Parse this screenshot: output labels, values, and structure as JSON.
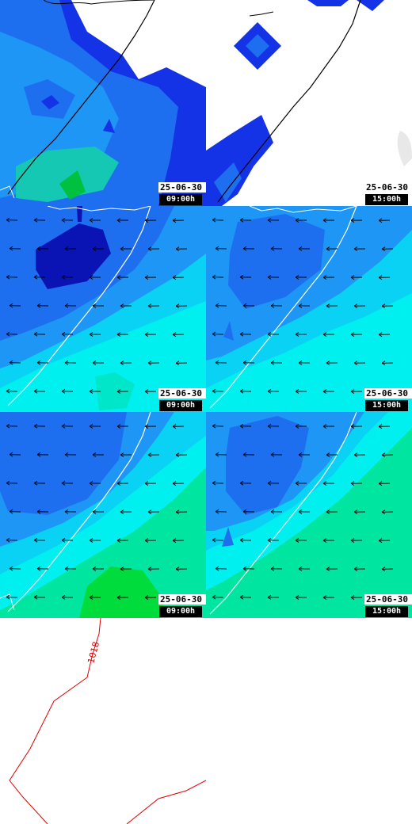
{
  "panels": [
    {
      "id": "r1c1",
      "date": "25-06-30",
      "time": "09:00h"
    },
    {
      "id": "r1c2",
      "date": "25-06-30",
      "time": "15:00h"
    },
    {
      "id": "r2c1",
      "date": "25-06-30",
      "time": "09:00h"
    },
    {
      "id": "r2c2",
      "date": "25-06-30",
      "time": "15:00h"
    },
    {
      "id": "r3c1",
      "date": "25-06-30",
      "time": "09:00h"
    },
    {
      "id": "r3c2",
      "date": "25-06-30",
      "time": "15:00h"
    }
  ],
  "isobar": {
    "label": "1018",
    "color": "#e00000"
  },
  "colors": {
    "navy": "#0a14b4",
    "blue": "#1432e6",
    "mid_blue": "#1e6ef0",
    "light_blue": "#1e96f5",
    "cyan": "#0ad2f5",
    "aqua": "#00f0f0",
    "teal": "#14c8b4",
    "sea_green": "#00e6a0",
    "green": "#00dc3c",
    "coast": "#ffffff",
    "arrow": "#000000"
  }
}
